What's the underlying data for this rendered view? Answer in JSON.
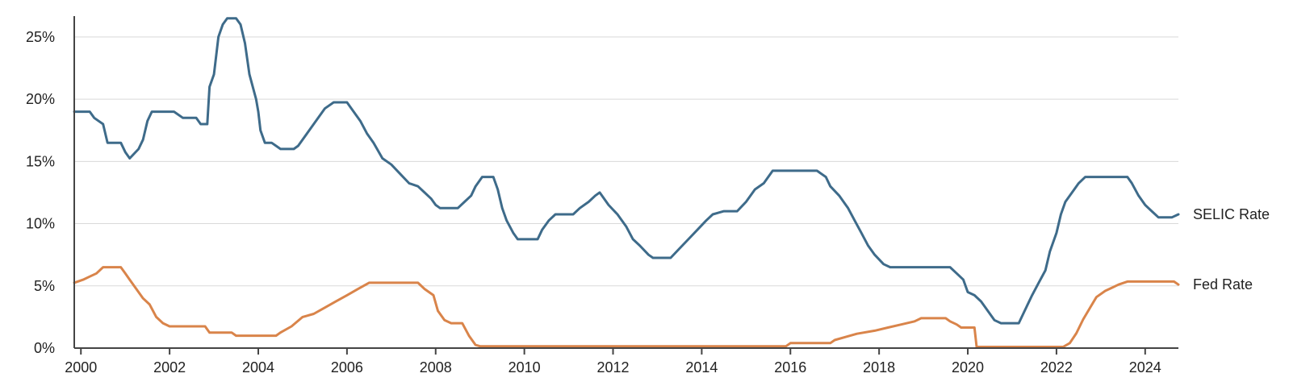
{
  "chart_data": {
    "type": "line",
    "x_range": [
      1999.85,
      2024.75
    ],
    "y_range": [
      0,
      27
    ],
    "y_ticks": [
      0,
      5,
      10,
      15,
      20,
      25
    ],
    "y_tick_labels": [
      "0%",
      "5%",
      "10%",
      "15%",
      "20%",
      "25%"
    ],
    "x_ticks": [
      2000,
      2002,
      2004,
      2006,
      2008,
      2010,
      2012,
      2014,
      2016,
      2018,
      2020,
      2022,
      2024
    ],
    "x_tick_labels": [
      "2000",
      "2002",
      "2004",
      "2006",
      "2008",
      "2010",
      "2012",
      "2014",
      "2016",
      "2018",
      "2020",
      "2022",
      "2024"
    ],
    "grid": "horizontal",
    "series": [
      {
        "name": "SELIC Rate",
        "color": "#3e6b8a",
        "points": [
          [
            1999.85,
            19.0
          ],
          [
            2000.2,
            19.0
          ],
          [
            2000.3,
            18.5
          ],
          [
            2000.5,
            18.0
          ],
          [
            2000.6,
            16.5
          ],
          [
            2000.9,
            16.5
          ],
          [
            2001.0,
            15.75
          ],
          [
            2001.1,
            15.25
          ],
          [
            2001.3,
            16.0
          ],
          [
            2001.4,
            16.75
          ],
          [
            2001.5,
            18.25
          ],
          [
            2001.6,
            19.0
          ],
          [
            2002.1,
            19.0
          ],
          [
            2002.3,
            18.5
          ],
          [
            2002.6,
            18.5
          ],
          [
            2002.7,
            18.0
          ],
          [
            2002.85,
            18.0
          ],
          [
            2002.9,
            21.0
          ],
          [
            2003.0,
            22.0
          ],
          [
            2003.1,
            25.0
          ],
          [
            2003.2,
            26.0
          ],
          [
            2003.3,
            26.5
          ],
          [
            2003.5,
            26.5
          ],
          [
            2003.6,
            26.0
          ],
          [
            2003.7,
            24.5
          ],
          [
            2003.8,
            22.0
          ],
          [
            2003.95,
            20.0
          ],
          [
            2004.0,
            19.0
          ],
          [
            2004.05,
            17.5
          ],
          [
            2004.15,
            16.5
          ],
          [
            2004.3,
            16.5
          ],
          [
            2004.4,
            16.25
          ],
          [
            2004.5,
            16.0
          ],
          [
            2004.8,
            16.0
          ],
          [
            2004.9,
            16.25
          ],
          [
            2005.2,
            17.75
          ],
          [
            2005.5,
            19.25
          ],
          [
            2005.7,
            19.75
          ],
          [
            2006.0,
            19.75
          ],
          [
            2006.1,
            19.25
          ],
          [
            2006.3,
            18.25
          ],
          [
            2006.45,
            17.25
          ],
          [
            2006.6,
            16.5
          ],
          [
            2006.8,
            15.25
          ],
          [
            2007.0,
            14.75
          ],
          [
            2007.2,
            14.0
          ],
          [
            2007.4,
            13.25
          ],
          [
            2007.6,
            13.0
          ],
          [
            2007.75,
            12.5
          ],
          [
            2007.9,
            12.0
          ],
          [
            2008.0,
            11.5
          ],
          [
            2008.1,
            11.25
          ],
          [
            2008.5,
            11.25
          ],
          [
            2008.65,
            11.75
          ],
          [
            2008.8,
            12.25
          ],
          [
            2008.9,
            13.0
          ],
          [
            2009.05,
            13.75
          ],
          [
            2009.3,
            13.75
          ],
          [
            2009.4,
            12.75
          ],
          [
            2009.5,
            11.25
          ],
          [
            2009.6,
            10.25
          ],
          [
            2009.75,
            9.25
          ],
          [
            2009.85,
            8.75
          ],
          [
            2010.3,
            8.75
          ],
          [
            2010.4,
            9.5
          ],
          [
            2010.55,
            10.25
          ],
          [
            2010.7,
            10.75
          ],
          [
            2011.1,
            10.75
          ],
          [
            2011.25,
            11.25
          ],
          [
            2011.45,
            11.75
          ],
          [
            2011.6,
            12.25
          ],
          [
            2011.7,
            12.5
          ],
          [
            2011.9,
            11.5
          ],
          [
            2012.1,
            10.75
          ],
          [
            2012.3,
            9.75
          ],
          [
            2012.45,
            8.75
          ],
          [
            2012.6,
            8.25
          ],
          [
            2012.8,
            7.5
          ],
          [
            2012.9,
            7.25
          ],
          [
            2013.3,
            7.25
          ],
          [
            2013.5,
            8.0
          ],
          [
            2013.7,
            8.75
          ],
          [
            2013.9,
            9.5
          ],
          [
            2014.1,
            10.25
          ],
          [
            2014.25,
            10.75
          ],
          [
            2014.5,
            11.0
          ],
          [
            2014.8,
            11.0
          ],
          [
            2015.0,
            11.75
          ],
          [
            2015.2,
            12.75
          ],
          [
            2015.4,
            13.25
          ],
          [
            2015.6,
            14.25
          ],
          [
            2016.6,
            14.25
          ],
          [
            2016.8,
            13.75
          ],
          [
            2016.9,
            13.0
          ],
          [
            2017.1,
            12.25
          ],
          [
            2017.3,
            11.25
          ],
          [
            2017.45,
            10.25
          ],
          [
            2017.6,
            9.25
          ],
          [
            2017.75,
            8.25
          ],
          [
            2017.9,
            7.5
          ],
          [
            2018.1,
            6.75
          ],
          [
            2018.25,
            6.5
          ],
          [
            2019.6,
            6.5
          ],
          [
            2019.75,
            6.0
          ],
          [
            2019.9,
            5.5
          ],
          [
            2020.0,
            4.5
          ],
          [
            2020.15,
            4.25
          ],
          [
            2020.3,
            3.75
          ],
          [
            2020.45,
            3.0
          ],
          [
            2020.6,
            2.25
          ],
          [
            2020.75,
            2.0
          ],
          [
            2021.15,
            2.0
          ],
          [
            2021.25,
            2.75
          ],
          [
            2021.45,
            4.25
          ],
          [
            2021.6,
            5.25
          ],
          [
            2021.75,
            6.25
          ],
          [
            2021.85,
            7.75
          ],
          [
            2022.0,
            9.25
          ],
          [
            2022.1,
            10.75
          ],
          [
            2022.2,
            11.75
          ],
          [
            2022.4,
            12.75
          ],
          [
            2022.5,
            13.25
          ],
          [
            2022.65,
            13.75
          ],
          [
            2023.6,
            13.75
          ],
          [
            2023.7,
            13.25
          ],
          [
            2023.85,
            12.25
          ],
          [
            2024.0,
            11.5
          ],
          [
            2024.15,
            11.0
          ],
          [
            2024.3,
            10.5
          ],
          [
            2024.6,
            10.5
          ],
          [
            2024.75,
            10.75
          ]
        ]
      },
      {
        "name": "Fed Rate",
        "color": "#d9844a",
        "points": [
          [
            1999.85,
            5.25
          ],
          [
            2000.05,
            5.5
          ],
          [
            2000.2,
            5.75
          ],
          [
            2000.35,
            6.0
          ],
          [
            2000.5,
            6.5
          ],
          [
            2000.9,
            6.5
          ],
          [
            2001.0,
            6.0
          ],
          [
            2001.1,
            5.5
          ],
          [
            2001.25,
            4.75
          ],
          [
            2001.4,
            4.0
          ],
          [
            2001.55,
            3.5
          ],
          [
            2001.7,
            2.5
          ],
          [
            2001.85,
            2.0
          ],
          [
            2002.0,
            1.75
          ],
          [
            2002.8,
            1.75
          ],
          [
            2002.9,
            1.25
          ],
          [
            2003.4,
            1.25
          ],
          [
            2003.5,
            1.0
          ],
          [
            2004.4,
            1.0
          ],
          [
            2004.5,
            1.25
          ],
          [
            2004.75,
            1.75
          ],
          [
            2005.0,
            2.5
          ],
          [
            2005.25,
            2.75
          ],
          [
            2005.5,
            3.25
          ],
          [
            2005.75,
            3.75
          ],
          [
            2006.0,
            4.25
          ],
          [
            2006.25,
            4.75
          ],
          [
            2006.5,
            5.25
          ],
          [
            2007.6,
            5.25
          ],
          [
            2007.75,
            4.75
          ],
          [
            2007.95,
            4.25
          ],
          [
            2008.05,
            3.0
          ],
          [
            2008.2,
            2.25
          ],
          [
            2008.35,
            2.0
          ],
          [
            2008.6,
            2.0
          ],
          [
            2008.75,
            1.0
          ],
          [
            2008.9,
            0.25
          ],
          [
            2009.0,
            0.15
          ],
          [
            2015.9,
            0.15
          ],
          [
            2016.0,
            0.4
          ],
          [
            2016.9,
            0.4
          ],
          [
            2017.0,
            0.65
          ],
          [
            2017.25,
            0.9
          ],
          [
            2017.5,
            1.15
          ],
          [
            2017.9,
            1.4
          ],
          [
            2018.2,
            1.65
          ],
          [
            2018.5,
            1.9
          ],
          [
            2018.8,
            2.15
          ],
          [
            2018.95,
            2.4
          ],
          [
            2019.5,
            2.4
          ],
          [
            2019.6,
            2.15
          ],
          [
            2019.75,
            1.9
          ],
          [
            2019.85,
            1.65
          ],
          [
            2020.15,
            1.65
          ],
          [
            2020.2,
            0.1
          ],
          [
            2022.15,
            0.1
          ],
          [
            2022.3,
            0.4
          ],
          [
            2022.45,
            1.2
          ],
          [
            2022.6,
            2.3
          ],
          [
            2022.75,
            3.2
          ],
          [
            2022.9,
            4.1
          ],
          [
            2023.1,
            4.6
          ],
          [
            2023.25,
            4.85
          ],
          [
            2023.4,
            5.1
          ],
          [
            2023.6,
            5.35
          ],
          [
            2024.65,
            5.35
          ],
          [
            2024.75,
            5.1
          ]
        ]
      }
    ]
  }
}
